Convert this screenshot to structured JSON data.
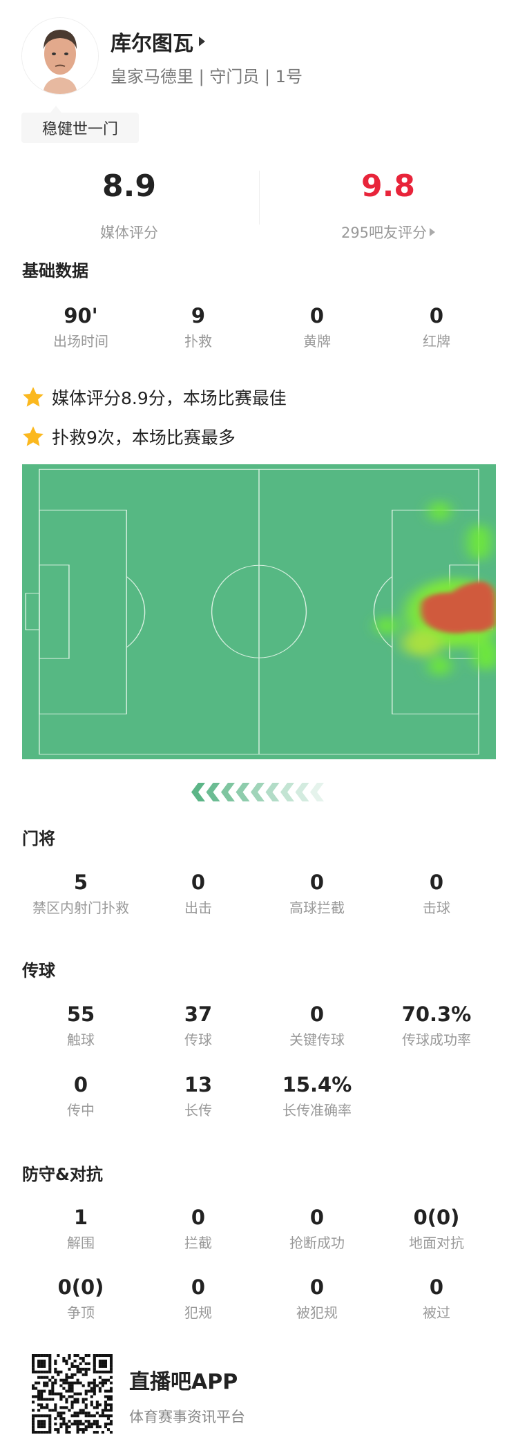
{
  "player": {
    "name": "库尔图瓦",
    "subtitle": "皇家马德里 | 守门员 | 1号",
    "tag": "稳健世一门"
  },
  "ratings": {
    "media": {
      "value": "8.9",
      "label": "媒体评分"
    },
    "fans": {
      "value": "9.8",
      "label": "295吧友评分"
    }
  },
  "colors": {
    "fan_rating": "#e8243a",
    "pitch": "#56b883",
    "accent": "#5cb587",
    "star": "#fbb81f"
  },
  "sections": [
    {
      "title": "基础数据",
      "rows": [
        [
          {
            "value": "90'",
            "label": "出场时间"
          },
          {
            "value": "9",
            "label": "扑救"
          },
          {
            "value": "0",
            "label": "黄牌"
          },
          {
            "value": "0",
            "label": "红牌"
          }
        ]
      ]
    },
    {
      "title": "门将",
      "rows": [
        [
          {
            "value": "5",
            "label": "禁区内射门扑救"
          },
          {
            "value": "0",
            "label": "出击"
          },
          {
            "value": "0",
            "label": "高球拦截"
          },
          {
            "value": "0",
            "label": "击球"
          }
        ]
      ]
    },
    {
      "title": "传球",
      "rows": [
        [
          {
            "value": "55",
            "label": "触球"
          },
          {
            "value": "37",
            "label": "传球"
          },
          {
            "value": "0",
            "label": "关键传球"
          },
          {
            "value": "70.3%",
            "label": "传球成功率"
          }
        ],
        [
          {
            "value": "0",
            "label": "传中"
          },
          {
            "value": "13",
            "label": "长传"
          },
          {
            "value": "15.4%",
            "label": "长传准确率"
          }
        ]
      ]
    },
    {
      "title": "防守&对抗",
      "rows": [
        [
          {
            "value": "1",
            "label": "解围"
          },
          {
            "value": "0",
            "label": "拦截"
          },
          {
            "value": "0",
            "label": "抢断成功"
          },
          {
            "value": "0(0)",
            "label": "地面对抗"
          }
        ],
        [
          {
            "value": "0(0)",
            "label": "争顶"
          },
          {
            "value": "0",
            "label": "犯规"
          },
          {
            "value": "0",
            "label": "被犯规"
          },
          {
            "value": "0",
            "label": "被过"
          }
        ]
      ]
    }
  ],
  "highlights": [
    {
      "icon": "star-icon",
      "text": "媒体评分8.9分，本场比赛最佳"
    },
    {
      "icon": "star-icon",
      "text": "扑救9次，本场比赛最多"
    }
  ],
  "footer": {
    "app_name": "直播吧APP",
    "app_desc": "体育赛事资讯平台"
  }
}
